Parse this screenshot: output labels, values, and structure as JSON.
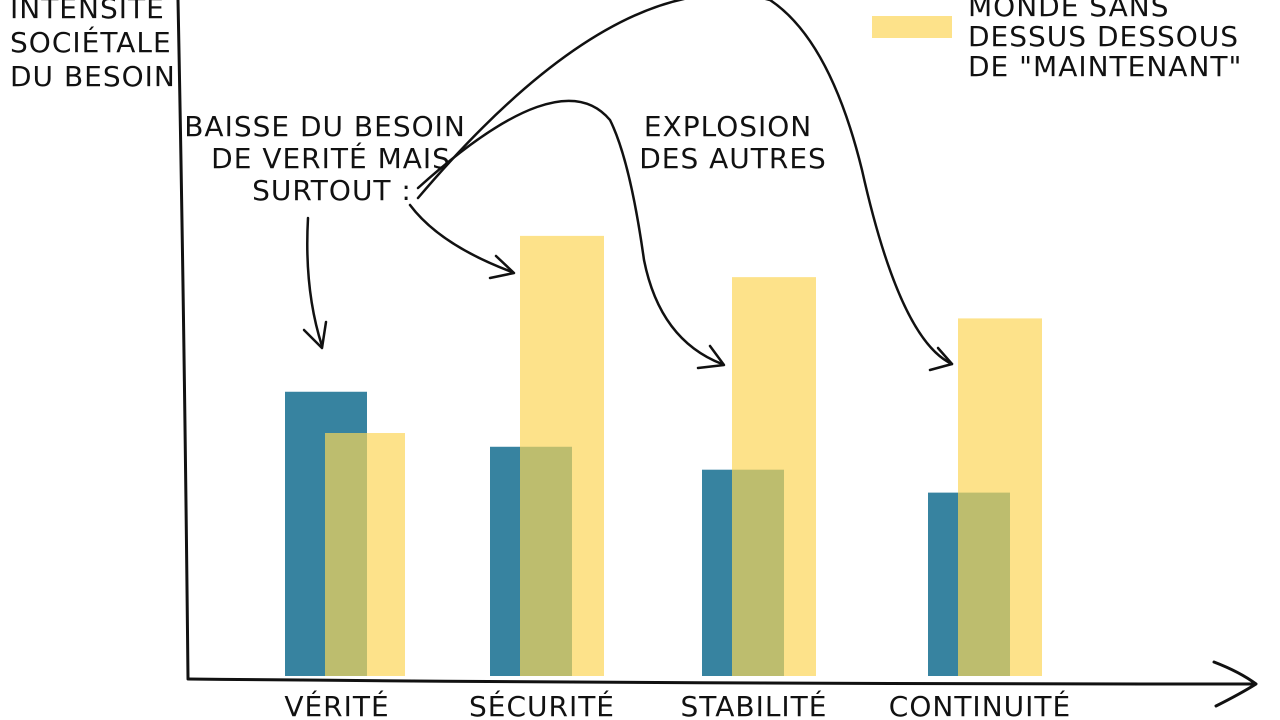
{
  "chart_data": {
    "type": "bar",
    "ylabel": [
      "INTENSITÉ",
      "SOCIÉTALE",
      "DU BESOIN"
    ],
    "categories": [
      "VÉRITÉ",
      "SÉCURITÉ",
      "STABILITÉ",
      "CONTINUITÉ"
    ],
    "series": [
      {
        "values": [
          62,
          50,
          45,
          40
        ],
        "color": "#3783a0"
      },
      {
        "name": [
          "MONDE SANS",
          "DESSUS DESSOUS",
          "DE \"MAINTENANT\""
        ],
        "values": [
          53,
          96,
          87,
          78
        ],
        "color": "#fde28a"
      }
    ],
    "ylim": [
      0,
      130
    ],
    "grid": false,
    "legend": "top-right",
    "overlap_color": "#bdbd6e",
    "annotations": {
      "left_note": [
        "BAISSE DU BESOIN",
        "DE VERITÉ MAIS",
        "SURTOUT :"
      ],
      "right_note": [
        "EXPLOSION",
        "DES AUTRES"
      ]
    }
  }
}
